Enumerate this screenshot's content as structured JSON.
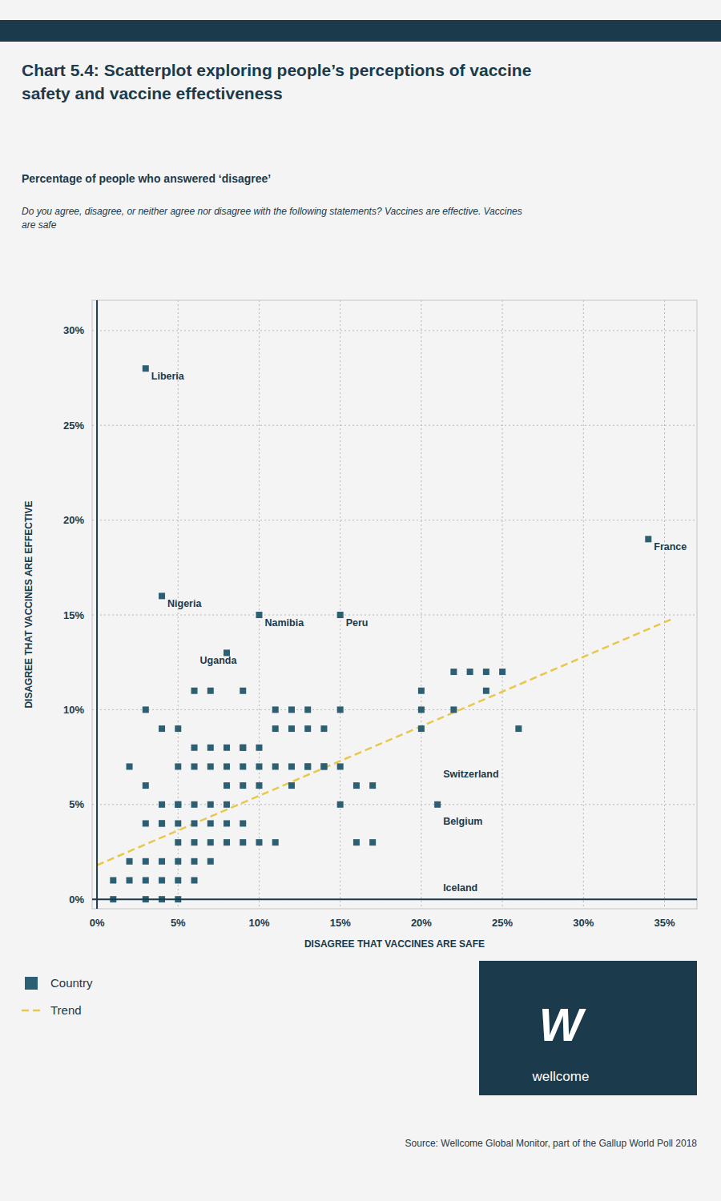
{
  "chart_data": {
    "type": "scatter",
    "title": "Chart 5.4: Scatterplot exploring people’s perceptions of vaccine\nsafety and vaccine effectiveness",
    "subtitle": "Percentage of people who answered ‘disagree’",
    "caption": "Do you agree, disagree, or neither agree nor disagree with the following statements? Vaccines are effective. Vaccines\nare safe",
    "x_label": "DISAGREE THAT VACCINES ARE SAFE",
    "y_label": "DISAGREE THAT VACCINES ARE EFFECTIVE",
    "source": "Source: Wellcome Global Monitor, part of the Gallup World Poll 2018",
    "logo_mark": "W",
    "logo_text": "wellcome",
    "series": [
      {
        "name": "Country",
        "color": "#2d5f73",
        "marker": "square",
        "x": [
          0.01,
          0.01,
          0.02,
          0.02,
          0.02,
          0.03,
          0.03,
          0.03,
          0.03,
          0.03,
          0.03,
          0.03,
          0.04,
          0.04,
          0.04,
          0.04,
          0.04,
          0.04,
          0.04,
          0.04,
          0.05,
          0.05,
          0.05,
          0.05,
          0.05,
          0.05,
          0.05,
          0.05,
          0.05,
          0.06,
          0.06,
          0.06,
          0.06,
          0.06,
          0.06,
          0.06,
          0.06,
          0.07,
          0.07,
          0.07,
          0.07,
          0.07,
          0.07,
          0.07,
          0.08,
          0.08,
          0.08,
          0.08,
          0.08,
          0.08,
          0.08,
          0.09,
          0.09,
          0.09,
          0.09,
          0.09,
          0.09,
          0.09,
          0.1,
          0.1,
          0.1,
          0.1,
          0.1,
          0.11,
          0.11,
          0.11,
          0.11,
          0.12,
          0.12,
          0.12,
          0.12,
          0.13,
          0.13,
          0.13,
          0.13,
          0.14,
          0.14,
          0.14,
          0.15,
          0.15,
          0.15,
          0.15,
          0.16,
          0.16,
          0.17,
          0.17,
          0.2,
          0.2,
          0.2,
          0.21,
          0.22,
          0.22,
          0.23,
          0.24,
          0.24,
          0.25,
          0.26,
          0.34
        ],
        "values": [
          0.01,
          0.0,
          0.01,
          0.07,
          0.02,
          0.1,
          0.04,
          0.06,
          0.02,
          0.01,
          0.0,
          0.28,
          0.04,
          0.05,
          0.04,
          0.02,
          0.01,
          0.0,
          0.09,
          0.16,
          0.05,
          0.04,
          0.05,
          0.03,
          0.02,
          0.01,
          0.0,
          0.07,
          0.09,
          0.08,
          0.07,
          0.05,
          0.04,
          0.03,
          0.02,
          0.01,
          0.11,
          0.08,
          0.07,
          0.05,
          0.04,
          0.03,
          0.02,
          0.11,
          0.08,
          0.07,
          0.06,
          0.05,
          0.04,
          0.03,
          0.13,
          0.08,
          0.07,
          0.06,
          0.08,
          0.03,
          0.04,
          0.11,
          0.08,
          0.07,
          0.06,
          0.15,
          0.03,
          0.1,
          0.07,
          0.09,
          0.03,
          0.09,
          0.1,
          0.07,
          0.06,
          0.07,
          0.1,
          0.09,
          0.07,
          0.09,
          0.07,
          0.07,
          0.15,
          0.07,
          0.05,
          0.1,
          0.06,
          0.03,
          0.06,
          0.03,
          0.1,
          0.09,
          0.11,
          0.05,
          0.1,
          0.12,
          0.12,
          0.12,
          0.11,
          0.12,
          0.09,
          0.19
        ]
      },
      {
        "name": "Trend",
        "type": "line",
        "color": "#e8c84a",
        "line_style": "dashed",
        "x": [
          0.0,
          0.355
        ],
        "values": [
          0.018,
          0.148
        ]
      }
    ],
    "annotations": [
      {
        "text": "Liberia",
        "x": 0.03,
        "y": 0.28
      },
      {
        "text": "Nigeria",
        "x": 0.04,
        "y": 0.16
      },
      {
        "text": "Uganda",
        "x": 0.06,
        "y": 0.13
      },
      {
        "text": "Namibia",
        "x": 0.1,
        "y": 0.15
      },
      {
        "text": "Peru",
        "x": 0.15,
        "y": 0.15
      },
      {
        "text": "Switzerland",
        "x": 0.21,
        "y": 0.07
      },
      {
        "text": "Belgium",
        "x": 0.21,
        "y": 0.045
      },
      {
        "text": "Iceland",
        "x": 0.21,
        "y": 0.01
      },
      {
        "text": "France",
        "x": 0.34,
        "y": 0.19
      }
    ],
    "xlim": [
      -0.003,
      0.37
    ],
    "ylim": [
      -0.005,
      0.316
    ],
    "xticks": [
      {
        "value": 0.0,
        "label": "0%"
      },
      {
        "value": 0.05,
        "label": "5%"
      },
      {
        "value": 0.1,
        "label": "10%"
      },
      {
        "value": 0.15,
        "label": "15%"
      },
      {
        "value": 0.2,
        "label": "20%"
      },
      {
        "value": 0.25,
        "label": "25%"
      },
      {
        "value": 0.3,
        "label": "30%"
      },
      {
        "value": 0.35,
        "label": "35%"
      }
    ],
    "yticks": [
      {
        "value": 0.0,
        "label": "0%"
      },
      {
        "value": 0.05,
        "label": "5%"
      },
      {
        "value": 0.1,
        "label": "10%"
      },
      {
        "value": 0.15,
        "label": "15%"
      },
      {
        "value": 0.2,
        "label": "20%"
      },
      {
        "value": 0.25,
        "label": "25%"
      },
      {
        "value": 0.3,
        "label": "30%"
      }
    ],
    "grid": true,
    "legend": "lower left"
  }
}
